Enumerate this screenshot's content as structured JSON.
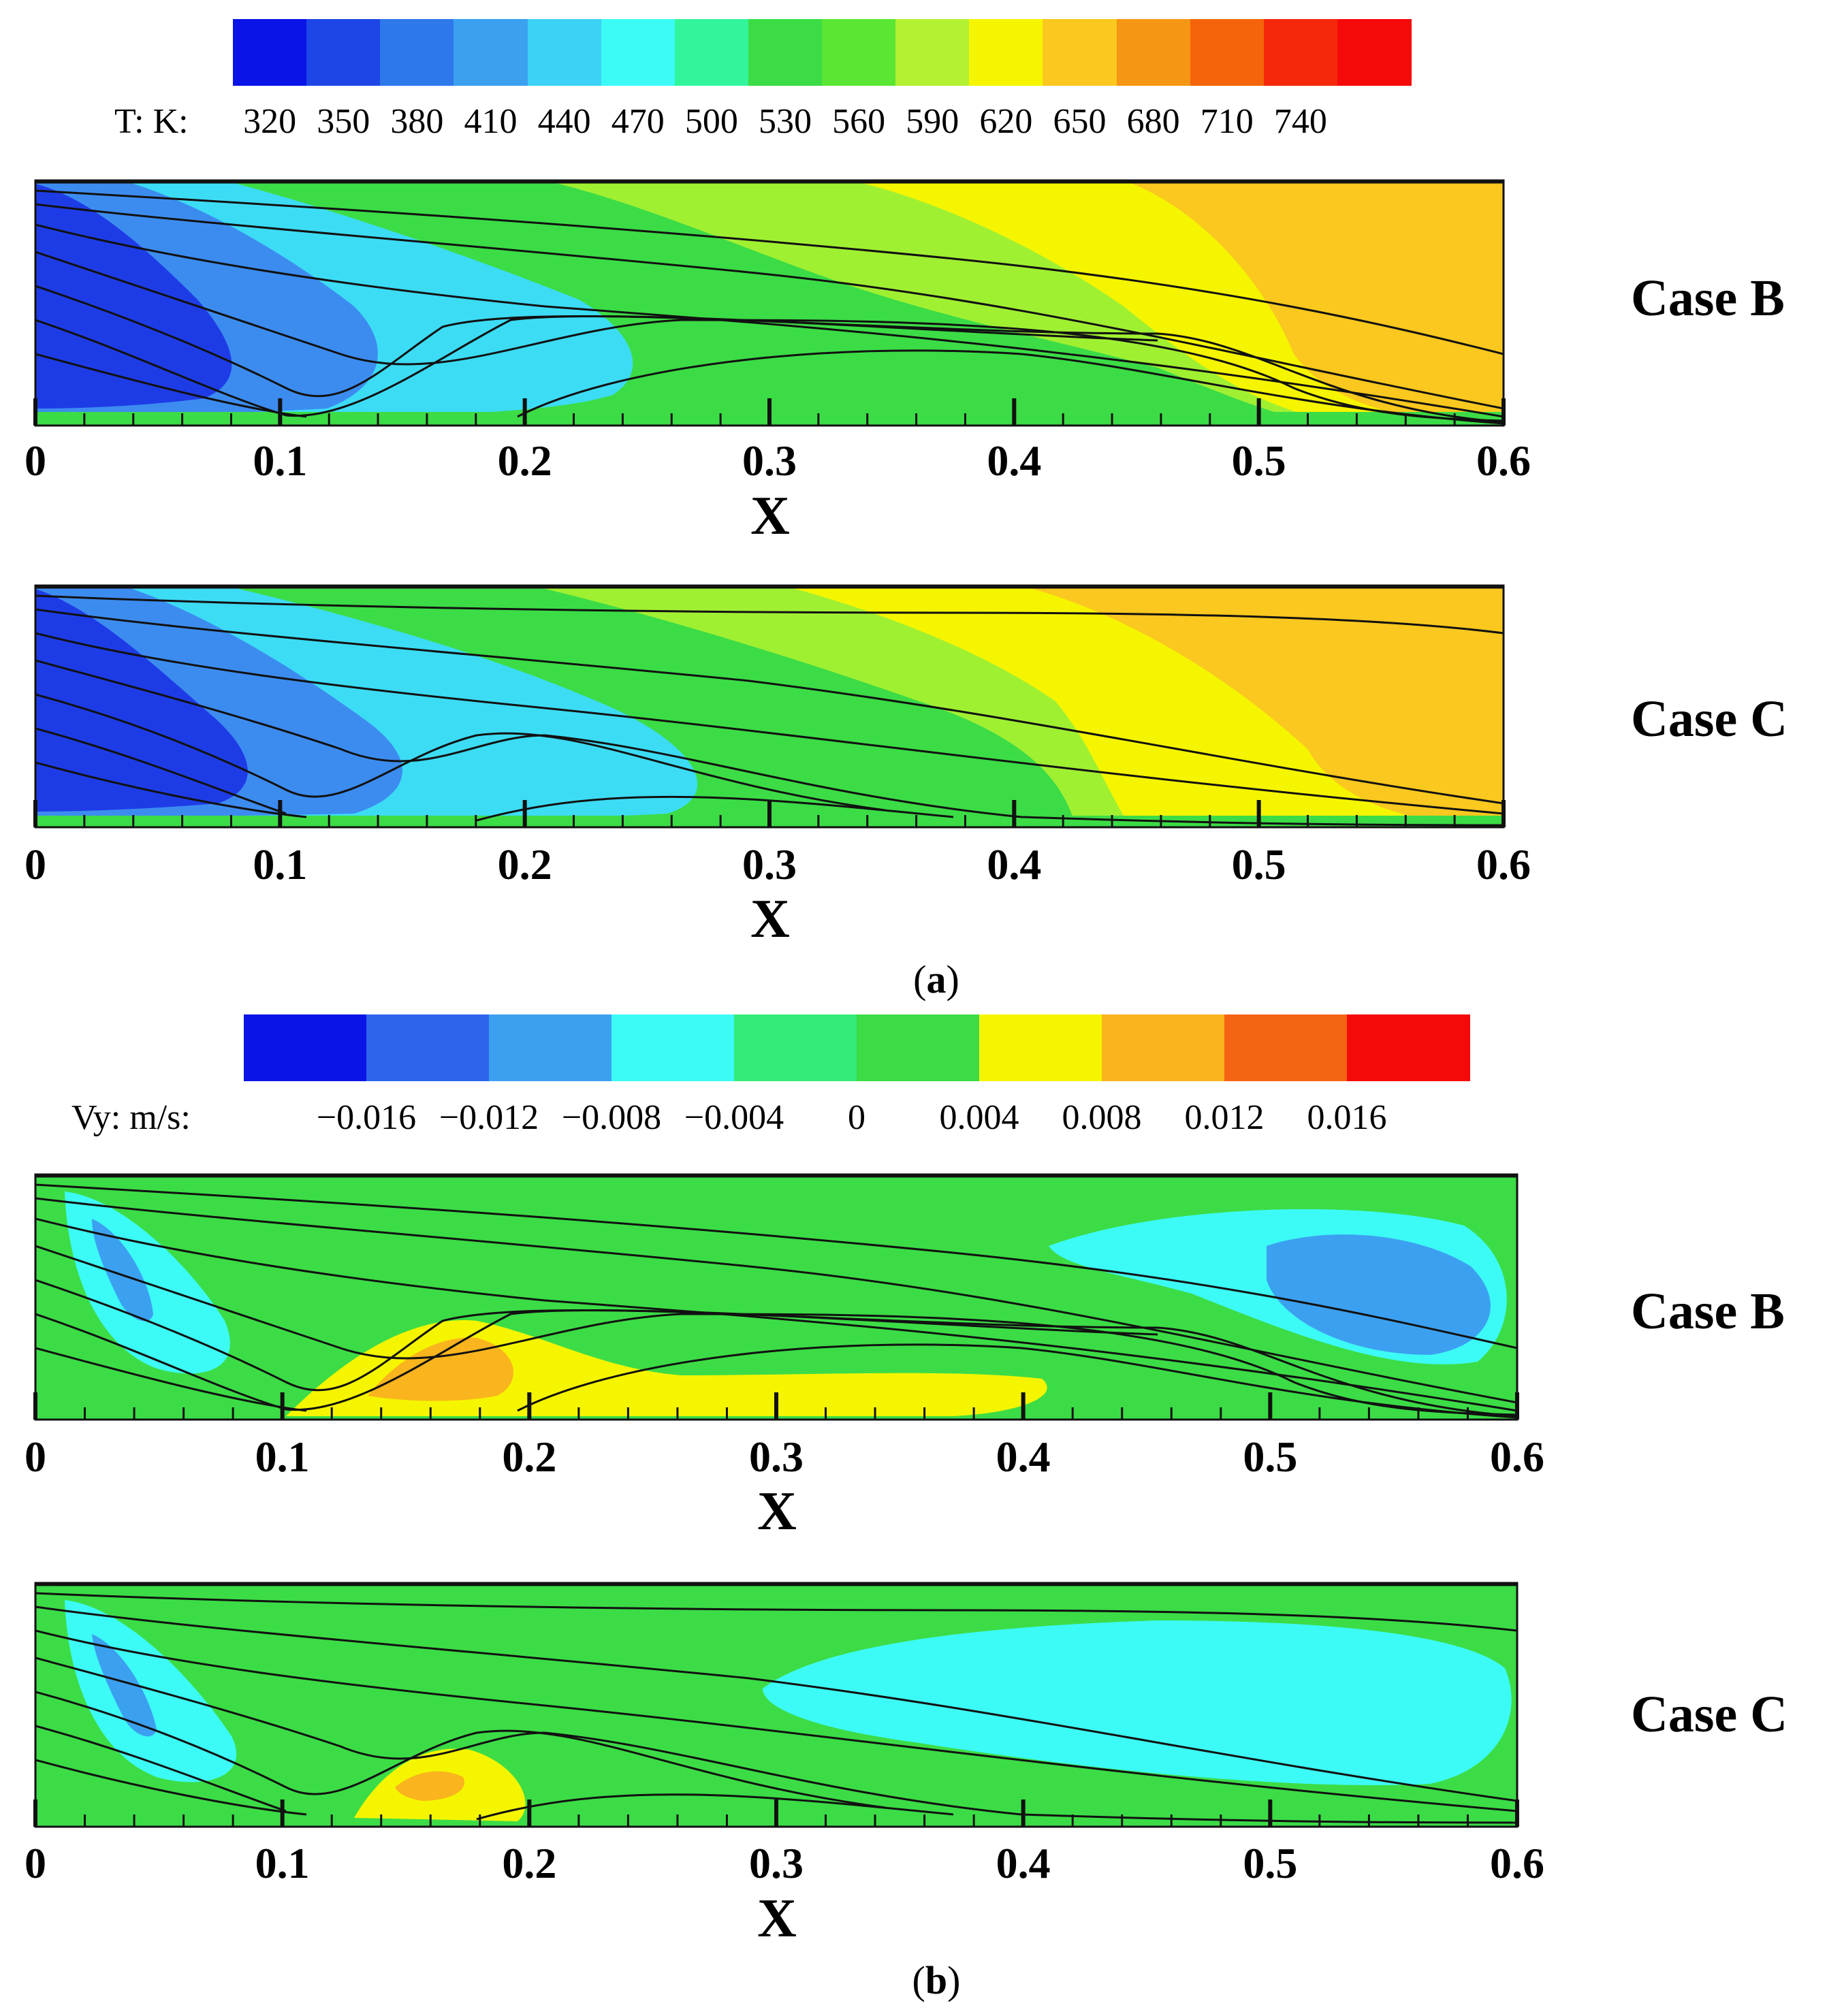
{
  "figure": {
    "subfigures": [
      {
        "label_open": "(",
        "label_letter": "a",
        "label_close": ")",
        "colorbar": {
          "title": "T: K:",
          "tick_labels": [
            "320",
            "350",
            "380",
            "410",
            "440",
            "470",
            "500",
            "530",
            "560",
            "590",
            "620",
            "650",
            "680",
            "710",
            "740"
          ],
          "colors": [
            "#0a14e6",
            "#1e46e6",
            "#2d78eb",
            "#3ca0f0",
            "#3cd2f5",
            "#3cfaf5",
            "#32f59b",
            "#3cdc46",
            "#5ae632",
            "#b4f032",
            "#f5f500",
            "#fac81e",
            "#f59614",
            "#f5640a",
            "#f5280a",
            "#f50a0a"
          ]
        },
        "panels": [
          {
            "case_label": "Case B",
            "x_axis": {
              "title": "X",
              "ticks": [
                "0",
                "0.1",
                "0.2",
                "0.3",
                "0.4",
                "0.5",
                "0.6"
              ]
            },
            "field_colors": {
              "cold": "#1e3ce6",
              "cool": "#3c8cf0",
              "cyan": "#3cdcf5",
              "green": "#3cdc46",
              "lime": "#a0f032",
              "yellow": "#f5f500",
              "orange": "#fac81e"
            }
          },
          {
            "case_label": "Case C",
            "x_axis": {
              "title": "X",
              "ticks": [
                "0",
                "0.1",
                "0.2",
                "0.3",
                "0.4",
                "0.5",
                "0.6"
              ]
            },
            "field_colors": {
              "cold": "#1e3ce6",
              "cool": "#3c8cf0",
              "cyan": "#3cdcf5",
              "green": "#3cdc46",
              "lime": "#a0f032",
              "yellow": "#f5f500",
              "orange": "#fac81e"
            }
          }
        ]
      },
      {
        "label_open": "(",
        "label_letter": "b",
        "label_close": ")",
        "colorbar": {
          "title": "Vy: m/s:",
          "tick_labels": [
            "-0.016",
            "-0.012",
            "-0.008",
            "-0.004",
            "0",
            "0.004",
            "0.008",
            "0.012",
            "0.016"
          ],
          "colors": [
            "#0a14e6",
            "#2d64eb",
            "#3ca0f0",
            "#3cfaf5",
            "#32eb78",
            "#3cdc46",
            "#f5f500",
            "#fab41e",
            "#f56414",
            "#f50a0a"
          ]
        },
        "panels": [
          {
            "case_label": "Case B",
            "x_axis": {
              "title": "X",
              "ticks": [
                "0",
                "0.1",
                "0.2",
                "0.3",
                "0.4",
                "0.5",
                "0.6"
              ]
            },
            "field_colors": {
              "green": "#3cdc46",
              "cyan": "#3cfaf5",
              "blue": "#3ca0f0",
              "yellow": "#f5f500",
              "orange": "#fab41e"
            }
          },
          {
            "case_label": "Case C",
            "x_axis": {
              "title": "X",
              "ticks": [
                "0",
                "0.1",
                "0.2",
                "0.3",
                "0.4",
                "0.5",
                "0.6"
              ]
            },
            "field_colors": {
              "green": "#3cdc46",
              "cyan": "#3cfaf5",
              "blue": "#3ca0f0",
              "yellow": "#f5f500",
              "orange": "#fab41e"
            }
          }
        ]
      }
    ]
  }
}
